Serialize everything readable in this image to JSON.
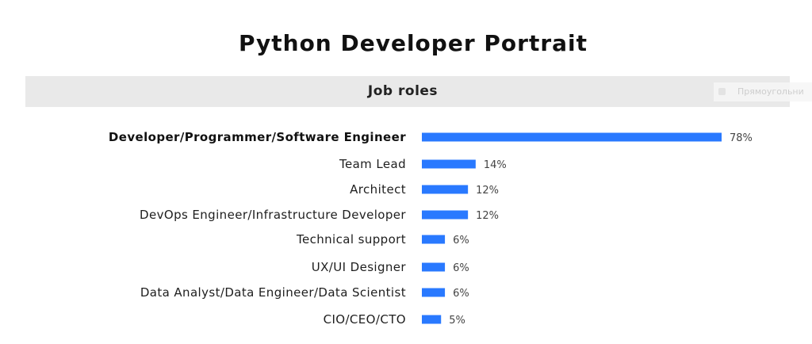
{
  "title": "Python Developer Portrait",
  "section_header": "Job roles",
  "overlay": {
    "label": "Прямоугольни",
    "icon": "rectangle-icon"
  },
  "colors": {
    "bar": "#2979ff",
    "header_band": "#e9e9e9"
  },
  "chart_data": {
    "type": "bar",
    "orientation": "horizontal",
    "title": "Job roles",
    "categories": [
      "Developer/Programmer/Software Engineer",
      "Team Lead",
      "Architect",
      "DevOps Engineer/Infrastructure Developer",
      "Technical support",
      "UX/UI Designer",
      "Data Analyst/Data Engineer/Data Scientist",
      "CIO/CEO/CTO"
    ],
    "values": [
      78,
      14,
      12,
      12,
      6,
      6,
      6,
      5
    ],
    "value_labels": [
      "78%",
      "14%",
      "12%",
      "12%",
      "6%",
      "6%",
      "6%",
      "5%"
    ],
    "unit": "%",
    "xlim": [
      0,
      78
    ],
    "highlighted_category_index": 0,
    "grid": false,
    "legend": "none"
  }
}
